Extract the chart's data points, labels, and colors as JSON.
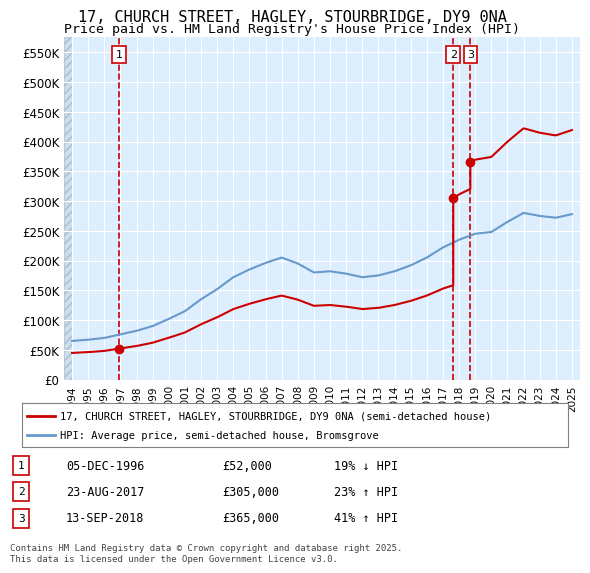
{
  "title_line1": "17, CHURCH STREET, HAGLEY, STOURBRIDGE, DY9 0NA",
  "title_line2": "Price paid vs. HM Land Registry's House Price Index (HPI)",
  "legend_line1": "17, CHURCH STREET, HAGLEY, STOURBRIDGE, DY9 0NA (semi-detached house)",
  "legend_line2": "HPI: Average price, semi-detached house, Bromsgrove",
  "footer": "Contains HM Land Registry data © Crown copyright and database right 2025.\nThis data is licensed under the Open Government Licence v3.0.",
  "sale_color": "#cc0000",
  "hpi_color": "#6699cc",
  "background_color": "#ddeeff",
  "hatch_color": "#bbccdd",
  "sale_dates_num": [
    1996.92,
    2017.64,
    2018.7
  ],
  "sale_prices": [
    52000,
    305000,
    365000
  ],
  "sale_labels": [
    "1",
    "2",
    "3"
  ],
  "table_entries": [
    {
      "label": "1",
      "date": "05-DEC-1996",
      "price": "£52,000",
      "change": "19% ↓ HPI"
    },
    {
      "label": "2",
      "date": "23-AUG-2017",
      "price": "£305,000",
      "change": "23% ↑ HPI"
    },
    {
      "label": "3",
      "date": "13-SEP-2018",
      "price": "£365,000",
      "change": "41% ↑ HPI"
    }
  ],
  "ylim": [
    0,
    575000
  ],
  "xlim_start": 1993.5,
  "xlim_end": 2025.5,
  "yticks": [
    0,
    50000,
    100000,
    150000,
    200000,
    250000,
    300000,
    350000,
    400000,
    450000,
    500000,
    550000
  ],
  "ytick_labels": [
    "£0",
    "£50K",
    "£100K",
    "£150K",
    "£200K",
    "£250K",
    "£300K",
    "£350K",
    "£400K",
    "£450K",
    "£500K",
    "£550K"
  ],
  "xticks": [
    1994,
    1995,
    1996,
    1997,
    1998,
    1999,
    2000,
    2001,
    2002,
    2003,
    2004,
    2005,
    2006,
    2007,
    2008,
    2009,
    2010,
    2011,
    2012,
    2013,
    2014,
    2015,
    2016,
    2017,
    2018,
    2019,
    2020,
    2021,
    2022,
    2023,
    2024,
    2025
  ]
}
